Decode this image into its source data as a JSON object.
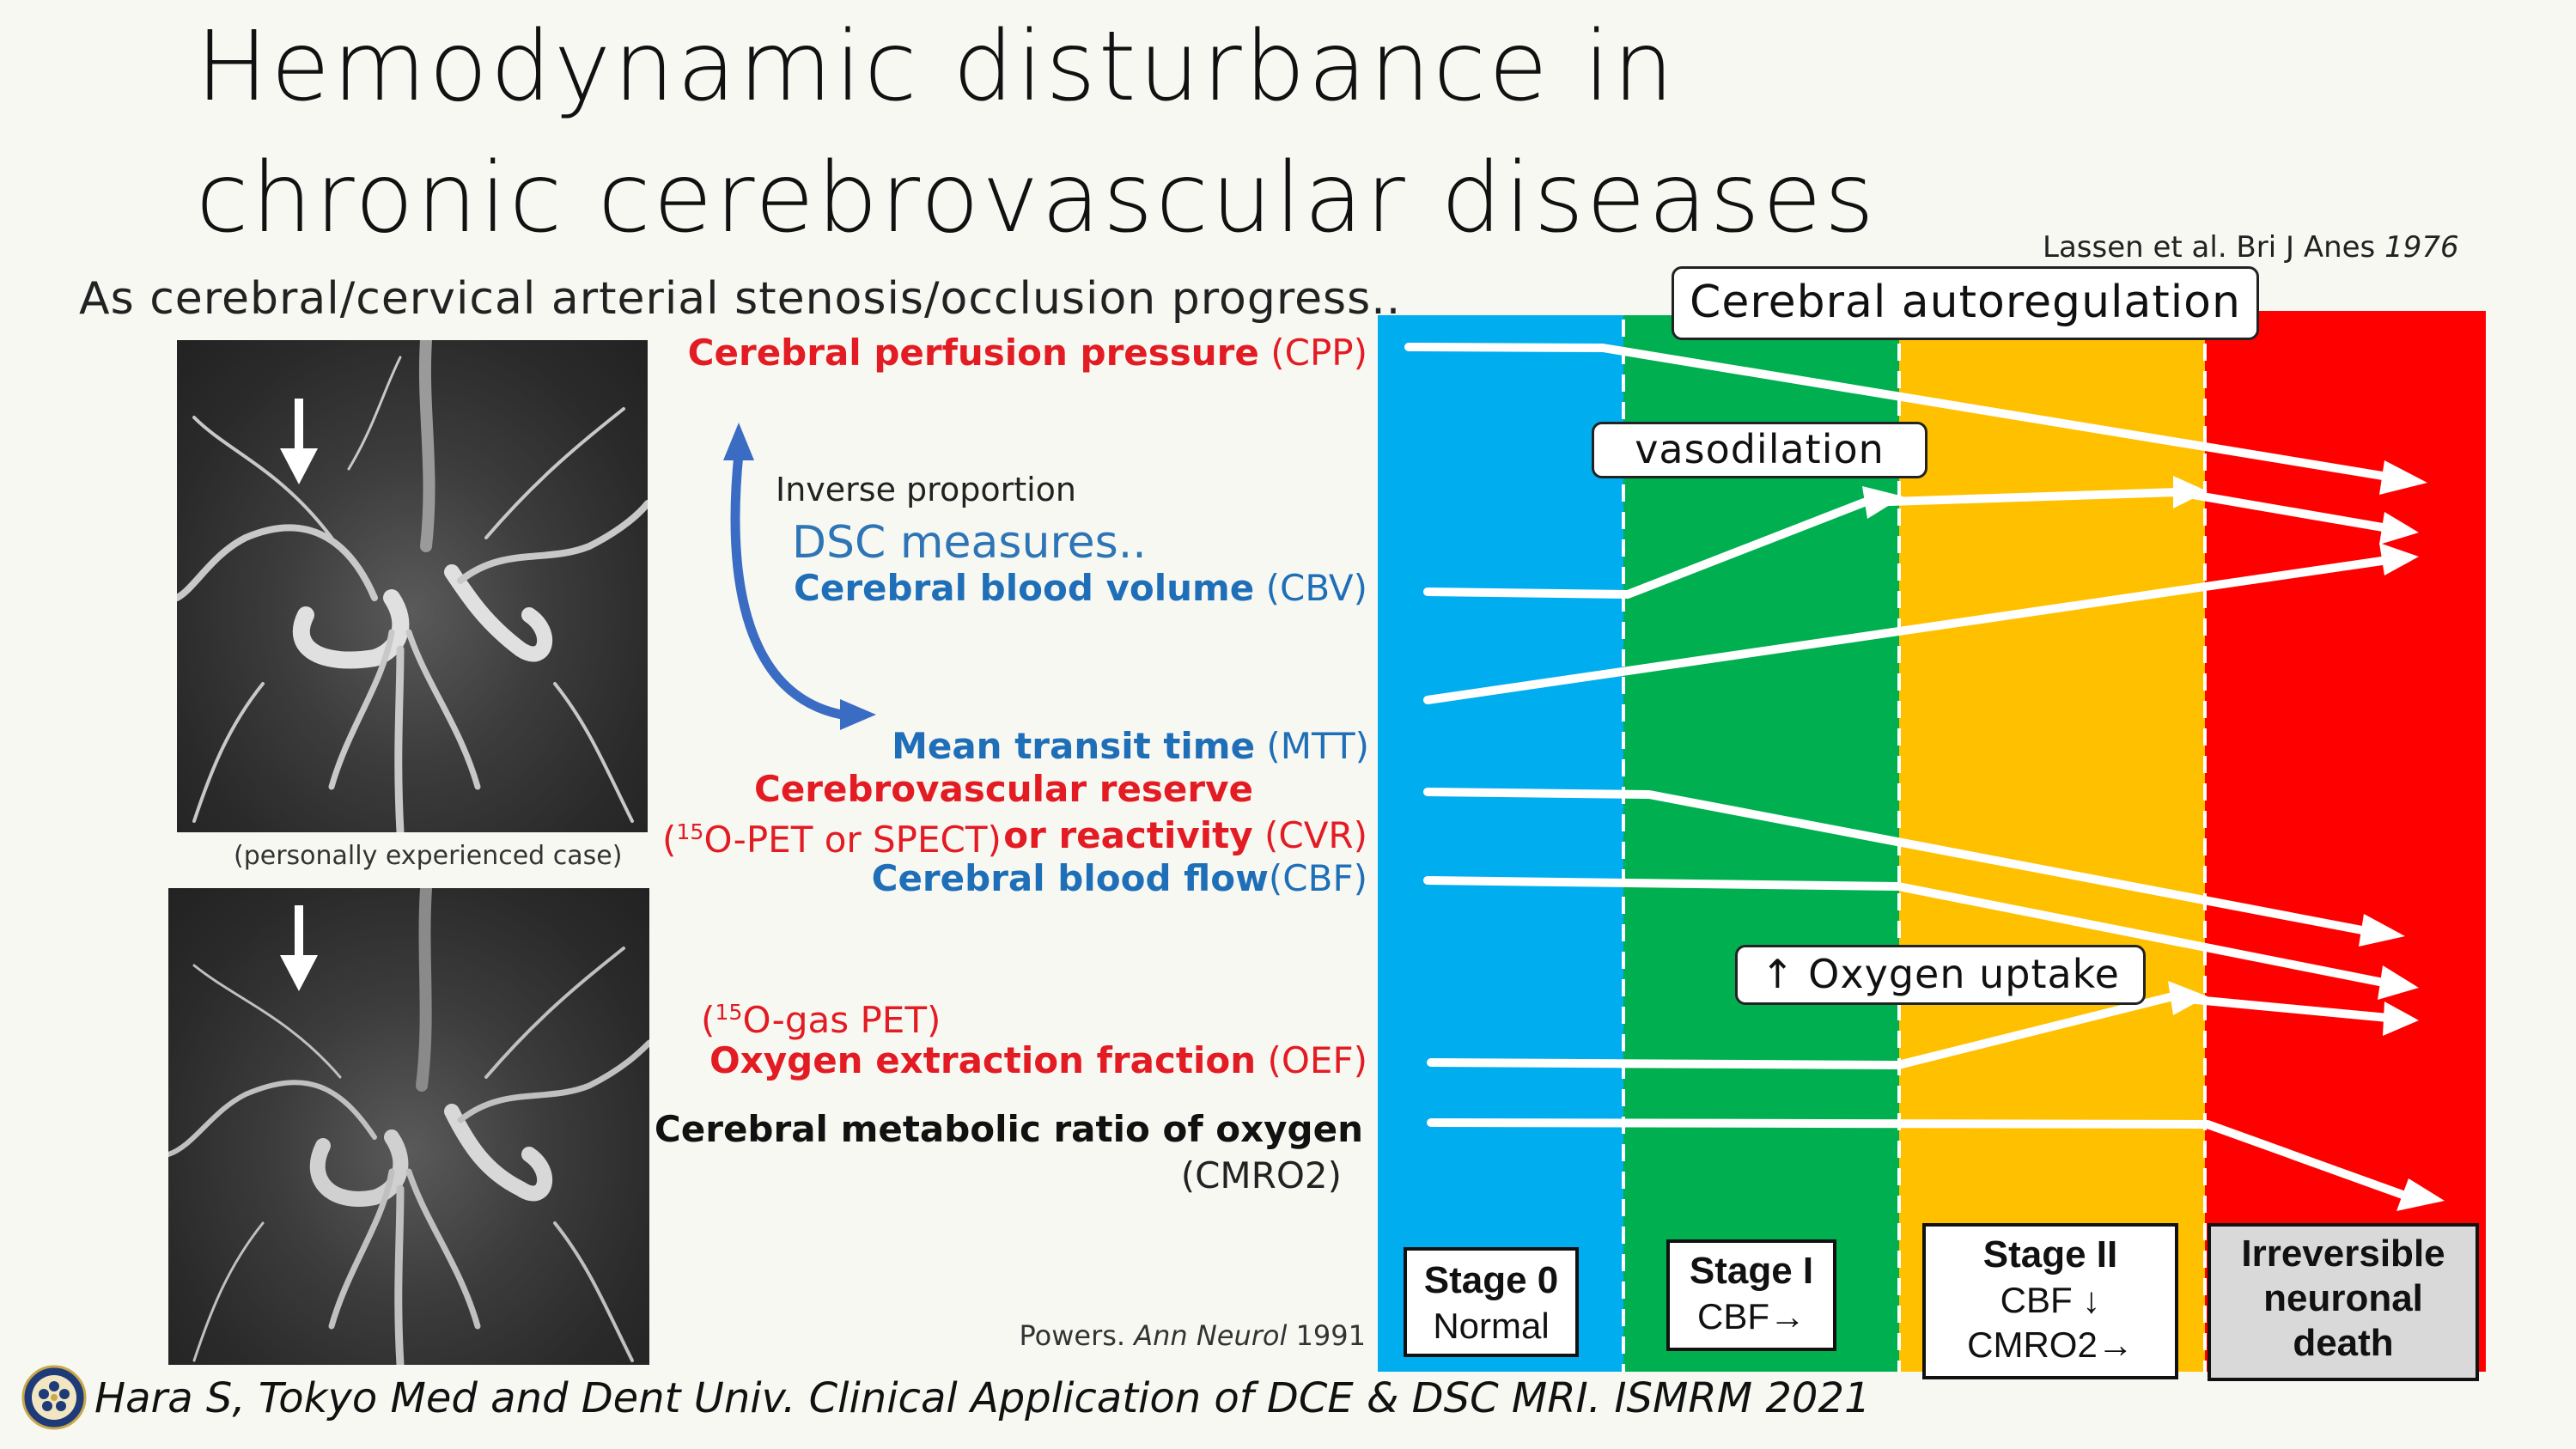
{
  "title": {
    "line1": "Hemodynamic disturbance in",
    "line2": "chronic cerebrovascular diseases"
  },
  "subtitle": "As cerebral/cervical arterial stenosis/occlusion progress..",
  "citation_lassen": {
    "text": "Lassen et al. Bri J Anes ",
    "year": "1976"
  },
  "citation_powers": {
    "prefix": "Powers. ",
    "journal": "Ann Neurol",
    "year": " 1991"
  },
  "footer": "Hara S, Tokyo Med and Dent Univ. Clinical Application of DCE & DSC MRI. ISMRM 2021",
  "images": {
    "caption": "(personally experienced case)"
  },
  "annotations": {
    "inverse": "Inverse proportion",
    "dsc": "DSC measures..",
    "pet_spect": [
      "15",
      "O-PET or SPECT)"
    ],
    "gas_pet": [
      "15",
      "O-gas PET)"
    ]
  },
  "parameters": {
    "cpp": {
      "name": "Cerebral perfusion pressure",
      "abbr": " (CPP)"
    },
    "cbv": {
      "name": "Cerebral blood volume",
      "abbr": " (CBV)"
    },
    "mtt": {
      "name": "Mean transit time",
      "abbr": " (MTT)"
    },
    "cvr1": {
      "name": "Cerebrovascular reserve"
    },
    "cvr2": {
      "name": "or reactivity",
      "abbr": " (CVR)"
    },
    "cbf": {
      "name": "Cerebral blood flow",
      "abbr": "(CBF)"
    },
    "oef": {
      "name": "Oxygen extraction fraction",
      "abbr": " (OEF)"
    },
    "cmro2": {
      "name": "Cerebral metabolic ratio of oxygen",
      "abbr": "(CMRO2)"
    }
  },
  "labels": {
    "autoregulation": "Cerebral autoregulation",
    "vasodilation": "vasodilation",
    "oxygen_uptake": "↑ Oxygen uptake"
  },
  "stages": [
    {
      "name": "Stage 0",
      "desc": "Normal",
      "color": "#00aeef"
    },
    {
      "name": "Stage I",
      "desc": "CBF→",
      "color": "#00b050"
    },
    {
      "name": "Stage II",
      "desc1": "CBF ↓",
      "desc2": "CMRO2→",
      "color": "#ffc000"
    },
    {
      "name1": "Irreversible",
      "name2": "neuronal",
      "name3": "death",
      "color": "#ff0000"
    }
  ]
}
